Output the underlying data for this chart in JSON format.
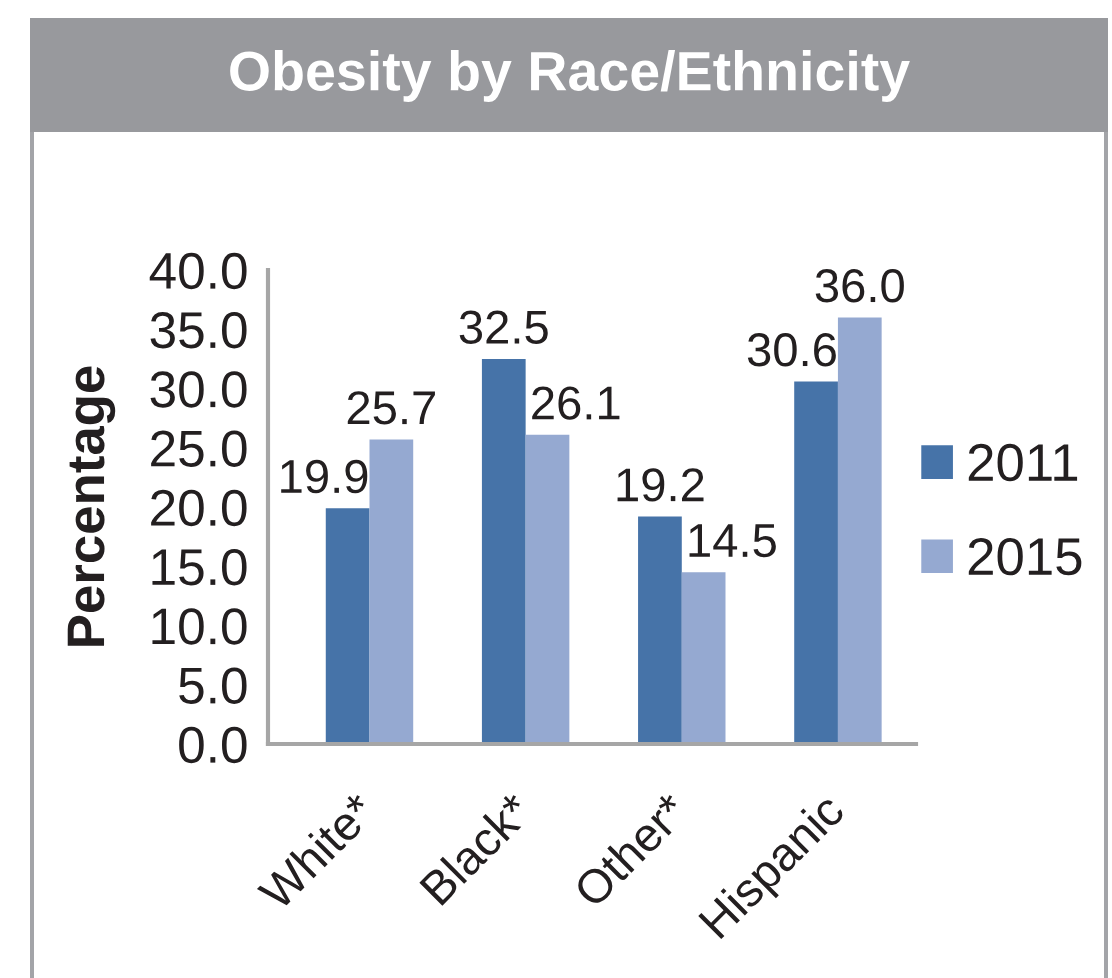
{
  "chart_data": {
    "type": "bar",
    "title": "Obesity by Race/Ethnicity",
    "ylabel": "Percentage",
    "categories": [
      "White*",
      "Black*",
      "Other*",
      "Hispanic"
    ],
    "series": [
      {
        "name": "2011",
        "color": "#4673a8",
        "values": [
          19.9,
          32.5,
          19.2,
          30.6
        ],
        "value_labels": [
          "19.9",
          "32.5",
          "19.2",
          "30.6"
        ]
      },
      {
        "name": "2015",
        "color": "#95a9d1",
        "values": [
          25.7,
          26.1,
          14.5,
          36.0
        ],
        "value_labels": [
          "25.7",
          "26.1",
          "14.5",
          "36.0"
        ]
      }
    ],
    "ylim": [
      0,
      40
    ],
    "yticks": [
      {
        "value": 0,
        "label": "0.0"
      },
      {
        "value": 5,
        "label": "5.0"
      },
      {
        "value": 10,
        "label": "10.0"
      },
      {
        "value": 15,
        "label": "15.0"
      },
      {
        "value": 20,
        "label": "20.0"
      },
      {
        "value": 25,
        "label": "25.0"
      },
      {
        "value": 30,
        "label": "30.0"
      },
      {
        "value": 35,
        "label": "35.0"
      },
      {
        "value": 40,
        "label": "40.0"
      }
    ],
    "legend": "right",
    "grid": false
  }
}
